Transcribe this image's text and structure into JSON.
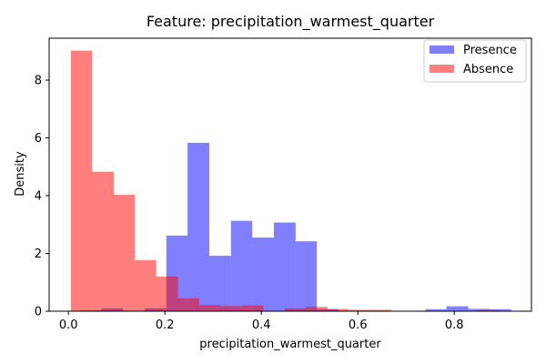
{
  "chart_data": {
    "type": "histogram",
    "title": "Feature: precipitation_warmest_quarter",
    "xlabel": "precipitation_warmest_quarter",
    "ylabel": "Density",
    "xlim": [
      -0.04,
      0.96
    ],
    "ylim": [
      0,
      9.45
    ],
    "x_ticks": [
      0.0,
      0.2,
      0.4,
      0.6,
      0.8
    ],
    "x_tick_labels": [
      "0.0",
      "0.2",
      "0.4",
      "0.6",
      "0.8"
    ],
    "y_ticks": [
      0,
      2,
      4,
      6,
      8
    ],
    "y_tick_labels": [
      "0",
      "2",
      "4",
      "6",
      "8"
    ],
    "legend_position": "top-right",
    "series": [
      {
        "name": "Presence",
        "color": "#0000ff",
        "alpha": 0.5,
        "bins": [
          {
            "x0": 0.024,
            "x1": 0.068,
            "value": 0.03
          },
          {
            "x0": 0.068,
            "x1": 0.113,
            "value": 0.1
          },
          {
            "x0": 0.158,
            "x1": 0.203,
            "value": 0.1
          },
          {
            "x0": 0.203,
            "x1": 0.247,
            "value": 2.62
          },
          {
            "x0": 0.247,
            "x1": 0.292,
            "value": 5.83
          },
          {
            "x0": 0.292,
            "x1": 0.337,
            "value": 1.92
          },
          {
            "x0": 0.337,
            "x1": 0.381,
            "value": 3.13
          },
          {
            "x0": 0.381,
            "x1": 0.426,
            "value": 2.55
          },
          {
            "x0": 0.426,
            "x1": 0.471,
            "value": 3.07
          },
          {
            "x0": 0.471,
            "x1": 0.515,
            "value": 2.42
          },
          {
            "x0": 0.515,
            "x1": 0.56,
            "value": 0.07
          },
          {
            "x0": 0.74,
            "x1": 0.784,
            "value": 0.07
          },
          {
            "x0": 0.784,
            "x1": 0.829,
            "value": 0.17
          },
          {
            "x0": 0.829,
            "x1": 0.873,
            "value": 0.08
          },
          {
            "x0": 0.873,
            "x1": 0.918,
            "value": 0.07
          }
        ]
      },
      {
        "name": "Absence",
        "color": "#ff0000",
        "alpha": 0.5,
        "bins": [
          {
            "x0": 0.005,
            "x1": 0.049,
            "value": 9.02
          },
          {
            "x0": 0.049,
            "x1": 0.094,
            "value": 4.83
          },
          {
            "x0": 0.094,
            "x1": 0.138,
            "value": 4.03
          },
          {
            "x0": 0.138,
            "x1": 0.182,
            "value": 1.77
          },
          {
            "x0": 0.182,
            "x1": 0.227,
            "value": 1.2
          },
          {
            "x0": 0.227,
            "x1": 0.271,
            "value": 0.45
          },
          {
            "x0": 0.271,
            "x1": 0.315,
            "value": 0.22
          },
          {
            "x0": 0.315,
            "x1": 0.36,
            "value": 0.18
          },
          {
            "x0": 0.36,
            "x1": 0.404,
            "value": 0.2
          },
          {
            "x0": 0.448,
            "x1": 0.492,
            "value": 0.1
          },
          {
            "x0": 0.492,
            "x1": 0.537,
            "value": 0.15
          },
          {
            "x0": 0.537,
            "x1": 0.581,
            "value": 0.08
          },
          {
            "x0": 0.581,
            "x1": 0.625,
            "value": 0.05
          },
          {
            "x0": 0.625,
            "x1": 0.67,
            "value": 0.05
          },
          {
            "x0": 0.846,
            "x1": 0.891,
            "value": 0.04
          }
        ]
      }
    ]
  }
}
